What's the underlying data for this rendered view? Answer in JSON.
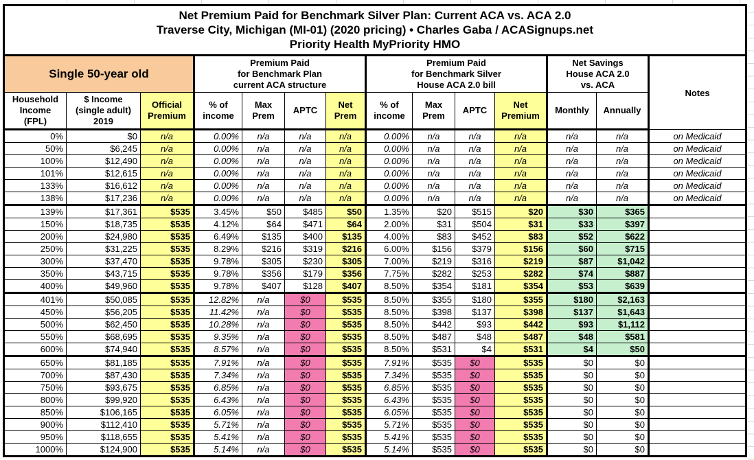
{
  "sheet": {
    "title_lines": [
      "Net Premium Paid for Benchmark Silver Plan: Current ACA vs. ACA 2.0",
      "Traverse City, Michigan (MI-01) (2020 pricing) • Charles Gaba / ACASignups.net",
      "Priority Health MyPriority HMO"
    ],
    "groups": {
      "subject": "Single 50-year old",
      "aca_current": "Premium Paid\nfor Benchmark Plan\ncurrent ACA structure",
      "aca_house": "Premium Paid\nfor Benchmark Silver\nHouse ACA 2.0 bill",
      "net_savings": "Net Savings\nHouse ACA 2.0\nvs. ACA",
      "notes": "Notes"
    },
    "column_headers": [
      "Household\nIncome\n(FPL)",
      "$ Income\n(single adult)\n2019",
      "Official\nPremium",
      "% of\nincome",
      "Max\nPrem",
      "APTC",
      "Net\nPrem",
      "% of\nincome",
      "Max\nPrem",
      "APTC",
      "Net\nPremium",
      "Monthly",
      "Annually"
    ],
    "colors": {
      "header_orange": "#F9CB9C",
      "highlight_yellow": "#FFFF99",
      "savings_green": "#C6EFCE",
      "no_subsidy_pink": "#F27CB0"
    },
    "rows": [
      {
        "type": "medicaid",
        "cells": [
          "0%",
          "$0",
          "n/a",
          "0.00%",
          "n/a",
          "n/a",
          "n/a",
          "0.00%",
          "n/a",
          "n/a",
          "n/a",
          "n/a",
          "n/a",
          "on Medicaid"
        ]
      },
      {
        "type": "medicaid",
        "cells": [
          "50%",
          "$6,245",
          "n/a",
          "0.00%",
          "n/a",
          "n/a",
          "n/a",
          "0.00%",
          "n/a",
          "n/a",
          "n/a",
          "n/a",
          "n/a",
          "on Medicaid"
        ]
      },
      {
        "type": "medicaid",
        "cells": [
          "100%",
          "$12,490",
          "n/a",
          "0.00%",
          "n/a",
          "n/a",
          "n/a",
          "0.00%",
          "n/a",
          "n/a",
          "n/a",
          "n/a",
          "n/a",
          "on Medicaid"
        ]
      },
      {
        "type": "medicaid",
        "cells": [
          "101%",
          "$12,615",
          "n/a",
          "0.00%",
          "n/a",
          "n/a",
          "n/a",
          "0.00%",
          "n/a",
          "n/a",
          "n/a",
          "n/a",
          "n/a",
          "on Medicaid"
        ]
      },
      {
        "type": "medicaid",
        "cells": [
          "133%",
          "$16,612",
          "n/a",
          "0.00%",
          "n/a",
          "n/a",
          "n/a",
          "0.00%",
          "n/a",
          "n/a",
          "n/a",
          "n/a",
          "n/a",
          "on Medicaid"
        ]
      },
      {
        "type": "medicaid",
        "cells": [
          "138%",
          "$17,236",
          "n/a",
          "0.00%",
          "n/a",
          "n/a",
          "n/a",
          "0.00%",
          "n/a",
          "n/a",
          "n/a",
          "n/a",
          "n/a",
          "on Medicaid"
        ]
      },
      {
        "type": "sub",
        "sep": true,
        "cells": [
          "139%",
          "$17,361",
          "$535",
          "3.45%",
          "$50",
          "$485",
          "$50",
          "1.35%",
          "$20",
          "$515",
          "$20",
          "$30",
          "$365",
          ""
        ]
      },
      {
        "type": "sub",
        "cells": [
          "150%",
          "$18,735",
          "$535",
          "4.12%",
          "$64",
          "$471",
          "$64",
          "2.00%",
          "$31",
          "$504",
          "$31",
          "$33",
          "$397",
          ""
        ]
      },
      {
        "type": "sub",
        "cells": [
          "200%",
          "$24,980",
          "$535",
          "6.49%",
          "$135",
          "$400",
          "$135",
          "4.00%",
          "$83",
          "$452",
          "$83",
          "$52",
          "$622",
          ""
        ]
      },
      {
        "type": "sub",
        "cells": [
          "250%",
          "$31,225",
          "$535",
          "8.29%",
          "$216",
          "$319",
          "$216",
          "6.00%",
          "$156",
          "$379",
          "$156",
          "$60",
          "$715",
          ""
        ]
      },
      {
        "type": "sub",
        "cells": [
          "300%",
          "$37,470",
          "$535",
          "9.78%",
          "$305",
          "$230",
          "$305",
          "7.00%",
          "$219",
          "$316",
          "$219",
          "$87",
          "$1,042",
          ""
        ]
      },
      {
        "type": "sub",
        "cells": [
          "350%",
          "$43,715",
          "$535",
          "9.78%",
          "$356",
          "$179",
          "$356",
          "7.75%",
          "$282",
          "$253",
          "$282",
          "$74",
          "$887",
          ""
        ]
      },
      {
        "type": "sub",
        "cells": [
          "400%",
          "$49,960",
          "$535",
          "9.78%",
          "$407",
          "$128",
          "$407",
          "8.50%",
          "$354",
          "$181",
          "$354",
          "$53",
          "$639",
          ""
        ]
      },
      {
        "type": "cliff",
        "sep": true,
        "cells": [
          "401%",
          "$50,085",
          "$535",
          "12.82%",
          "n/a",
          "$0",
          "$535",
          "8.50%",
          "$355",
          "$180",
          "$355",
          "$180",
          "$2,163",
          ""
        ]
      },
      {
        "type": "cliff",
        "cells": [
          "450%",
          "$56,205",
          "$535",
          "11.42%",
          "n/a",
          "$0",
          "$535",
          "8.50%",
          "$398",
          "$137",
          "$398",
          "$137",
          "$1,643",
          ""
        ]
      },
      {
        "type": "cliff",
        "cells": [
          "500%",
          "$62,450",
          "$535",
          "10.28%",
          "n/a",
          "$0",
          "$535",
          "8.50%",
          "$442",
          "$93",
          "$442",
          "$93",
          "$1,112",
          ""
        ]
      },
      {
        "type": "cliff",
        "cells": [
          "550%",
          "$68,695",
          "$535",
          "9.35%",
          "n/a",
          "$0",
          "$535",
          "8.50%",
          "$487",
          "$48",
          "$487",
          "$48",
          "$581",
          ""
        ]
      },
      {
        "type": "cliff",
        "cells": [
          "600%",
          "$74,940",
          "$535",
          "8.57%",
          "n/a",
          "$0",
          "$535",
          "8.50%",
          "$531",
          "$4",
          "$531",
          "$4",
          "$50",
          ""
        ]
      },
      {
        "type": "full",
        "sep": true,
        "cells": [
          "650%",
          "$81,185",
          "$535",
          "7.91%",
          "n/a",
          "$0",
          "$535",
          "7.91%",
          "$535",
          "$0",
          "$535",
          "$0",
          "$0",
          ""
        ]
      },
      {
        "type": "full",
        "cells": [
          "700%",
          "$87,430",
          "$535",
          "7.34%",
          "n/a",
          "$0",
          "$535",
          "7.34%",
          "$535",
          "$0",
          "$535",
          "$0",
          "$0",
          ""
        ]
      },
      {
        "type": "full",
        "cells": [
          "750%",
          "$93,675",
          "$535",
          "6.85%",
          "n/a",
          "$0",
          "$535",
          "6.85%",
          "$535",
          "$0",
          "$535",
          "$0",
          "$0",
          ""
        ]
      },
      {
        "type": "full",
        "cells": [
          "800%",
          "$99,920",
          "$535",
          "6.43%",
          "n/a",
          "$0",
          "$535",
          "6.43%",
          "$535",
          "$0",
          "$535",
          "$0",
          "$0",
          ""
        ]
      },
      {
        "type": "full",
        "cells": [
          "850%",
          "$106,165",
          "$535",
          "6.05%",
          "n/a",
          "$0",
          "$535",
          "6.05%",
          "$535",
          "$0",
          "$535",
          "$0",
          "$0",
          ""
        ]
      },
      {
        "type": "full",
        "cells": [
          "900%",
          "$112,410",
          "$535",
          "5.71%",
          "n/a",
          "$0",
          "$535",
          "5.71%",
          "$535",
          "$0",
          "$535",
          "$0",
          "$0",
          ""
        ]
      },
      {
        "type": "full",
        "cells": [
          "950%",
          "$118,655",
          "$535",
          "5.41%",
          "n/a",
          "$0",
          "$535",
          "5.41%",
          "$535",
          "$0",
          "$535",
          "$0",
          "$0",
          ""
        ]
      },
      {
        "type": "full",
        "cells": [
          "1000%",
          "$124,900",
          "$535",
          "5.14%",
          "n/a",
          "$0",
          "$535",
          "5.14%",
          "$535",
          "$0",
          "$535",
          "$0",
          "$0",
          ""
        ]
      }
    ]
  }
}
